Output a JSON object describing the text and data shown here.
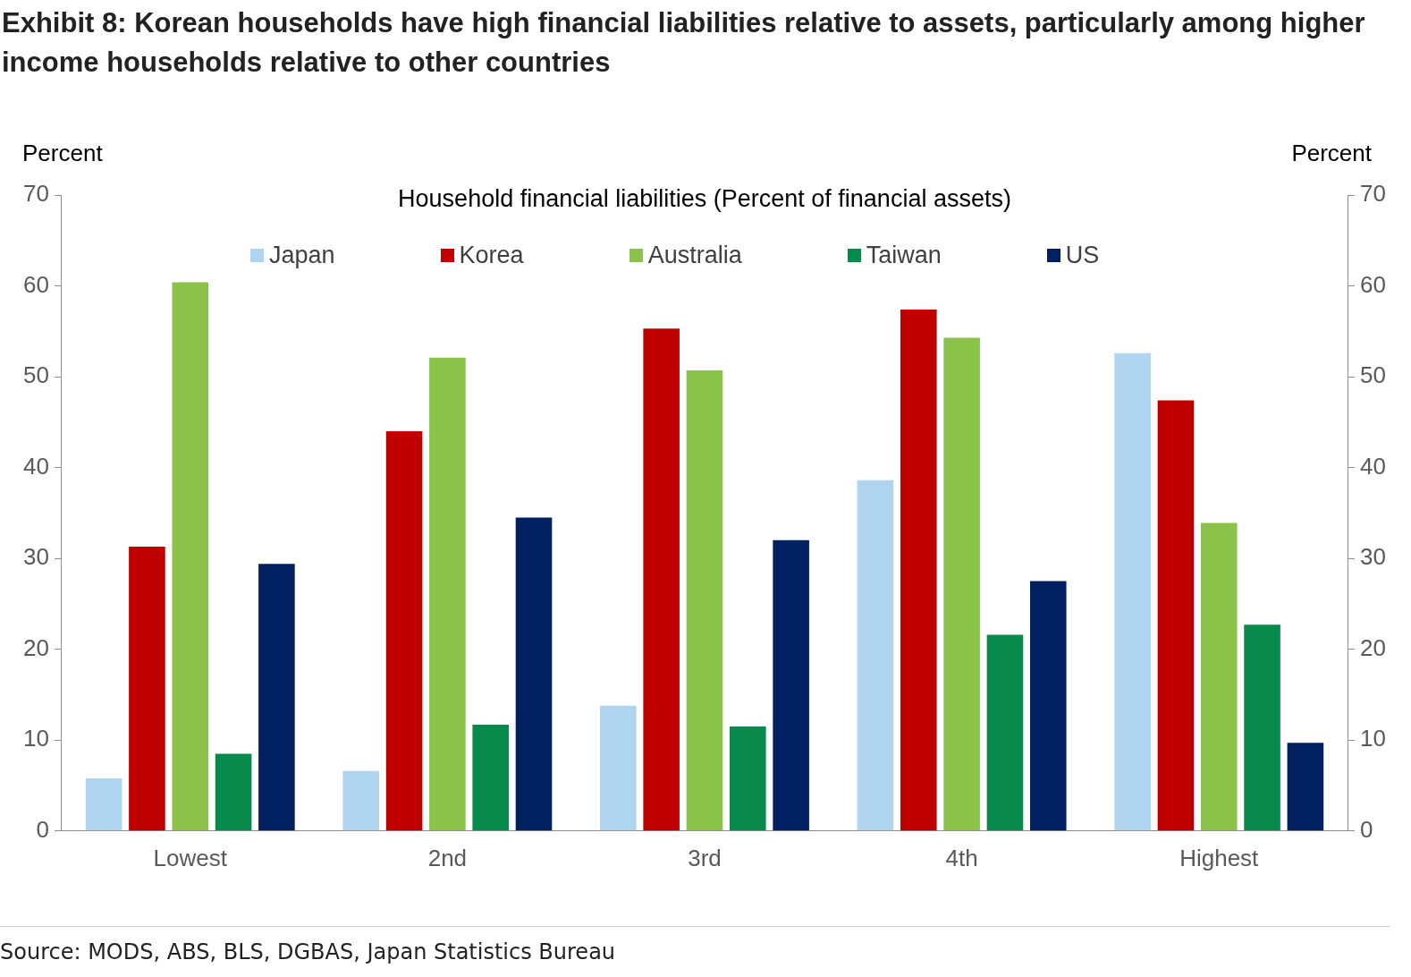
{
  "chart_data": {
    "type": "bar",
    "title": "Exhibit 8: Korean households have high financial liabilities relative to assets, particularly among higher income households relative to other countries",
    "subtitle": "Household financial liabilities (Percent of financial assets)",
    "ylabel": "Percent",
    "y2label": "Percent",
    "categories": [
      "Lowest",
      "2nd",
      "3rd",
      "4th",
      "Highest"
    ],
    "series": [
      {
        "name": "Japan",
        "color": "#aed4f0",
        "values": [
          5.8,
          6.6,
          13.8,
          38.6,
          52.6
        ]
      },
      {
        "name": "Korea",
        "color": "#c00000",
        "values": [
          31.3,
          44.0,
          55.3,
          57.4,
          47.4
        ]
      },
      {
        "name": "Australia",
        "color": "#8bc34a",
        "values": [
          60.4,
          52.1,
          50.7,
          54.3,
          33.9
        ]
      },
      {
        "name": "Taiwan",
        "color": "#078a4b",
        "values": [
          8.5,
          11.7,
          11.5,
          21.6,
          22.7
        ]
      },
      {
        "name": "US",
        "color": "#002060",
        "values": [
          29.4,
          34.5,
          32.0,
          27.5,
          9.7
        ]
      }
    ],
    "ylim": [
      0,
      70
    ],
    "yticks": [
      0,
      10,
      20,
      30,
      40,
      50,
      60,
      70
    ],
    "y2lim": [
      0,
      70
    ],
    "y2ticks": [
      0,
      10,
      20,
      30,
      40,
      50,
      60,
      70
    ],
    "grid": false,
    "legend": "top",
    "annotations": [
      "Source: MODS, ABS, BLS, DGBAS, Japan Statistics Bureau"
    ]
  }
}
